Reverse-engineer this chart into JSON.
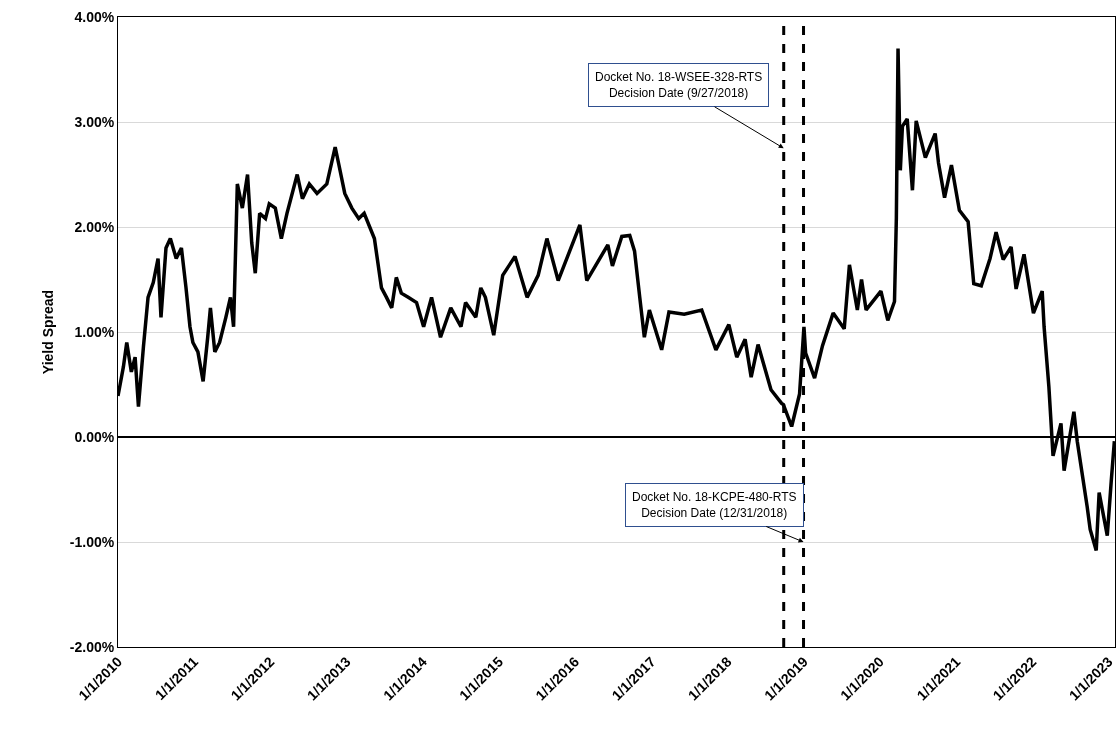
{
  "chart_data": {
    "type": "line",
    "ylabel": "Yield Spread",
    "x": [
      "2010-01-01",
      "2010-01-27",
      "2010-02-12",
      "2010-03-06",
      "2010-03-24",
      "2010-04-09",
      "2010-05-03",
      "2010-05-25",
      "2010-06-19",
      "2010-07-12",
      "2010-07-26",
      "2010-08-19",
      "2010-09-09",
      "2010-10-07",
      "2010-11-01",
      "2010-11-23",
      "2010-12-12",
      "2010-12-26",
      "2011-01-19",
      "2011-02-13",
      "2011-03-07",
      "2011-03-20",
      "2011-04-10",
      "2011-05-03",
      "2011-06-02",
      "2011-06-24",
      "2011-07-09",
      "2011-07-27",
      "2011-08-20",
      "2011-09-14",
      "2011-10-04",
      "2011-10-21",
      "2011-11-11",
      "2011-12-09",
      "2011-12-27",
      "2012-01-25",
      "2012-02-23",
      "2012-03-21",
      "2012-05-09",
      "2012-06-03",
      "2012-07-06",
      "2012-08-12",
      "2012-09-28",
      "2012-11-07",
      "2012-11-24",
      "2012-12-23",
      "2013-01-26",
      "2013-02-28",
      "2013-03-26",
      "2013-05-14",
      "2013-06-17",
      "2013-07-11",
      "2013-08-05",
      "2013-08-27",
      "2013-09-20",
      "2013-10-23",
      "2013-12-02",
      "2014-01-05",
      "2014-02-12",
      "2014-03-27",
      "2014-05-15",
      "2014-07-03",
      "2014-07-25",
      "2014-09-12",
      "2014-10-06",
      "2014-10-28",
      "2014-12-07",
      "2015-01-19",
      "2015-03-19",
      "2015-05-16",
      "2015-07-08",
      "2015-08-19",
      "2015-10-12",
      "2016-01-24",
      "2016-02-26",
      "2016-06-06",
      "2016-06-28",
      "2016-08-12",
      "2016-09-19",
      "2016-10-12",
      "2016-11-06",
      "2016-11-28",
      "2016-12-22",
      "2017-02-19",
      "2017-03-26",
      "2017-06-07",
      "2017-08-30",
      "2017-11-06",
      "2018-01-07",
      "2018-02-14",
      "2018-03-26",
      "2018-04-24",
      "2018-05-27",
      "2018-07-28",
      "2018-09-17",
      "2018-09-25",
      "2018-11-04",
      "2018-12-12",
      "2019-01-02",
      "2019-01-10",
      "2019-02-22",
      "2019-04-01",
      "2019-05-22",
      "2019-07-14",
      "2019-08-08",
      "2019-09-15",
      "2019-10-05",
      "2019-10-27",
      "2020-01-06",
      "2020-02-08",
      "2020-03-11",
      "2020-03-20",
      "2020-03-28",
      "2020-04-08",
      "2020-04-18",
      "2020-05-11",
      "2020-06-05",
      "2020-06-23",
      "2020-08-06",
      "2020-09-22",
      "2020-10-08",
      "2020-11-06",
      "2020-12-09",
      "2021-01-16",
      "2021-02-27",
      "2021-03-26",
      "2021-05-01",
      "2021-06-12",
      "2021-07-11",
      "2021-08-14",
      "2021-09-21",
      "2021-10-15",
      "2021-11-22",
      "2022-01-06",
      "2022-02-17",
      "2022-02-26",
      "2022-03-21",
      "2022-04-10",
      "2022-05-18",
      "2022-06-02",
      "2022-07-19",
      "2022-08-04",
      "2022-09-21",
      "2022-10-05",
      "2022-11-03",
      "2022-11-17",
      "2022-12-26",
      "2023-01-14",
      "2023-01-29"
    ],
    "series": [
      {
        "color": "#000000",
        "values": [
          0.39,
          0.67,
          0.9,
          0.62,
          0.76,
          0.29,
          0.86,
          1.33,
          1.47,
          1.7,
          1.14,
          1.8,
          1.89,
          1.7,
          1.8,
          1.42,
          1.05,
          0.9,
          0.81,
          0.53,
          0.95,
          1.23,
          0.81,
          0.9,
          1.14,
          1.33,
          1.05,
          2.41,
          2.18,
          2.5,
          1.85,
          1.56,
          2.13,
          2.08,
          2.22,
          2.18,
          1.89,
          2.13,
          2.5,
          2.27,
          2.41,
          2.32,
          2.41,
          2.76,
          2.6,
          2.32,
          2.18,
          2.08,
          2.13,
          1.89,
          1.42,
          1.33,
          1.23,
          1.52,
          1.37,
          1.33,
          1.28,
          1.05,
          1.33,
          0.95,
          1.23,
          1.05,
          1.28,
          1.14,
          1.42,
          1.33,
          0.97,
          1.54,
          1.72,
          1.33,
          1.54,
          1.89,
          1.49,
          2.02,
          1.49,
          1.83,
          1.63,
          1.91,
          1.92,
          1.77,
          1.33,
          0.95,
          1.21,
          0.83,
          1.19,
          1.17,
          1.21,
          0.83,
          1.07,
          0.76,
          0.93,
          0.57,
          0.88,
          0.45,
          0.32,
          0.31,
          0.1,
          0.41,
          1.05,
          0.8,
          0.56,
          0.87,
          1.18,
          1.03,
          1.64,
          1.21,
          1.5,
          1.21,
          1.39,
          1.11,
          1.29,
          2.09,
          3.7,
          2.54,
          2.96,
          3.03,
          2.35,
          3.01,
          2.66,
          2.89,
          2.61,
          2.28,
          2.59,
          2.16,
          2.05,
          1.46,
          1.44,
          1.7,
          1.95,
          1.69,
          1.81,
          1.41,
          1.74,
          1.18,
          1.39,
          1.05,
          0.48,
          -0.18,
          0.13,
          -0.32,
          0.24,
          -0.04,
          -0.67,
          -0.88,
          -1.08,
          -0.53,
          -0.94,
          -0.42,
          -0.04
        ]
      }
    ],
    "xlim": [
      "2010-01-01",
      "2023-02-01"
    ],
    "xticks": [
      {
        "value": "2010-01-01",
        "label": "1/1/2010"
      },
      {
        "value": "2011-01-01",
        "label": "1/1/2011"
      },
      {
        "value": "2012-01-01",
        "label": "1/1/2012"
      },
      {
        "value": "2013-01-01",
        "label": "1/1/2013"
      },
      {
        "value": "2014-01-01",
        "label": "1/1/2014"
      },
      {
        "value": "2015-01-01",
        "label": "1/1/2015"
      },
      {
        "value": "2016-01-01",
        "label": "1/1/2016"
      },
      {
        "value": "2017-01-01",
        "label": "1/1/2017"
      },
      {
        "value": "2018-01-01",
        "label": "1/1/2018"
      },
      {
        "value": "2019-01-01",
        "label": "1/1/2019"
      },
      {
        "value": "2020-01-01",
        "label": "1/1/2020"
      },
      {
        "value": "2021-01-01",
        "label": "1/1/2021"
      },
      {
        "value": "2022-01-01",
        "label": "1/1/2022"
      },
      {
        "value": "2023-01-01",
        "label": "1/1/2023"
      }
    ],
    "ylim": [
      -2,
      4
    ],
    "yticks": [
      {
        "value": -2,
        "label": "-2.00%"
      },
      {
        "value": -1,
        "label": "-1.00%"
      },
      {
        "value": 0,
        "label": "0.00%"
      },
      {
        "value": 1,
        "label": "1.00%"
      },
      {
        "value": 2,
        "label": "2.00%"
      },
      {
        "value": 3,
        "label": "3.00%"
      },
      {
        "value": 4,
        "label": "4.00%"
      }
    ],
    "grid": "y",
    "marker": "none",
    "line_style": "solid",
    "ref_lines": [
      {
        "axis": "x",
        "value": "2018-09-27",
        "color": "#000000",
        "line_style": "dashed"
      },
      {
        "axis": "x",
        "value": "2018-12-31",
        "color": "#000000",
        "line_style": "dashed"
      }
    ],
    "annotations": [
      {
        "text": "Docket No. 18-WSEE-328-RTS\nDecision Date (9/27/2018)",
        "x": "2018-09-27",
        "y": 2.75
      },
      {
        "text": "Docket No. 18-KCPE-480-RTS\nDecision Date (12/31/2018)",
        "x": "2018-12-31",
        "y": -1.0
      }
    ]
  }
}
